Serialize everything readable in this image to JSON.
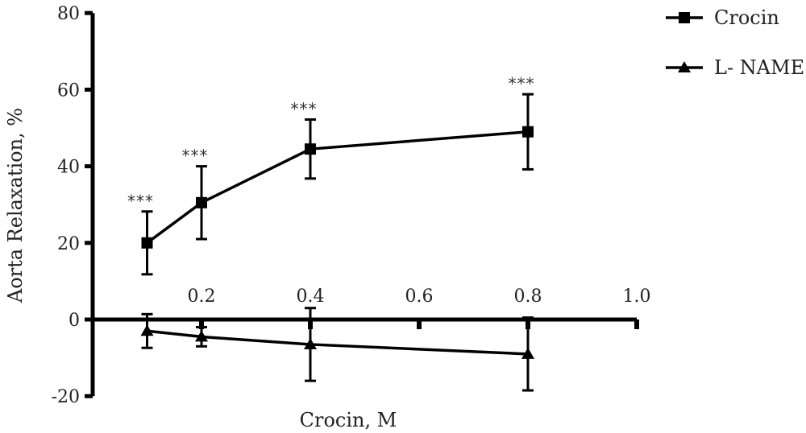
{
  "chart_data": {
    "type": "line",
    "title": "",
    "xlabel": "Crocin, M",
    "ylabel": "Aorta Relaxation, %",
    "xlim": [
      0,
      1.0
    ],
    "ylim": [
      -20,
      80
    ],
    "x_ticks": [
      0.2,
      0.4,
      0.6,
      0.8,
      1.0
    ],
    "x_tick_labels": [
      "0.2",
      "0.4",
      "0.6",
      "0.8",
      "1.0"
    ],
    "y_ticks": [
      -20,
      0,
      20,
      40,
      60,
      80
    ],
    "y_tick_labels": [
      "-20",
      "0",
      "20",
      "40",
      "60",
      "80"
    ],
    "legend_position": "top-right",
    "grid": false,
    "series": [
      {
        "name": "Crocin",
        "marker": "square",
        "x": [
          0.1,
          0.2,
          0.4,
          0.8
        ],
        "y": [
          20,
          30.5,
          44.5,
          49
        ],
        "error": [
          8.2,
          9.5,
          7.7,
          9.8
        ],
        "annotations": [
          "***",
          "***",
          "***",
          "***"
        ]
      },
      {
        "name": "L- NAME",
        "marker": "triangle",
        "x": [
          0.1,
          0.2,
          0.4,
          0.8
        ],
        "y": [
          -3,
          -4.5,
          -6.5,
          -9
        ],
        "error": [
          4.4,
          2.5,
          9.5,
          9.5
        ]
      }
    ]
  }
}
